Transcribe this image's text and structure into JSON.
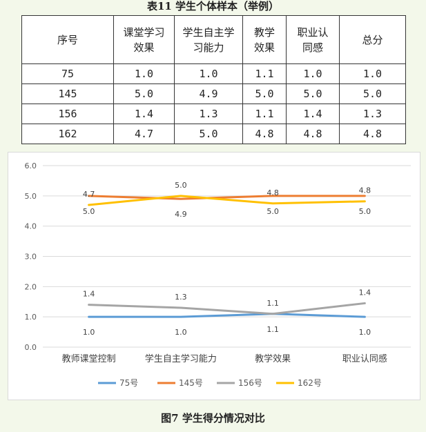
{
  "table": {
    "title": "表11  学生个体样本（举例）",
    "headers": [
      "序号",
      "课堂学习效果",
      "学生自主学习能力",
      "教学效果",
      "职业认同感",
      "总分"
    ],
    "header_lines": [
      [
        "序号"
      ],
      [
        "课堂学习",
        "效果"
      ],
      [
        "学生自主学",
        "习能力"
      ],
      [
        "教学",
        "效果"
      ],
      [
        "职业认",
        "同感"
      ],
      [
        "总分"
      ]
    ],
    "rows": [
      [
        "75",
        "1.0",
        "1.0",
        "1.1",
        "1.0",
        "1.0"
      ],
      [
        "145",
        "5.0",
        "4.9",
        "5.0",
        "5.0",
        "5.0"
      ],
      [
        "156",
        "1.4",
        "1.3",
        "1.1",
        "1.4",
        "1.3"
      ],
      [
        "162",
        "4.7",
        "5.0",
        "4.8",
        "4.8",
        "4.8"
      ]
    ]
  },
  "chart_data": {
    "type": "line",
    "title": "",
    "xlabel": "",
    "ylabel": "",
    "categories": [
      "教师课堂控制",
      "学生自主学习能力",
      "教学效果",
      "职业认同感"
    ],
    "ylim": [
      0,
      6
    ],
    "yticks": [
      "0.0",
      "1.0",
      "2.0",
      "3.0",
      "4.0",
      "5.0",
      "6.0"
    ],
    "grid": true,
    "legend_position": "bottom",
    "series": [
      {
        "name": "75号",
        "color": "#5b9bd5",
        "values": [
          1.0,
          1.0,
          1.1,
          1.0
        ],
        "labels": [
          "1.0",
          "1.0",
          "1.1",
          "1.0"
        ],
        "label_pos": [
          "below",
          "below",
          "below",
          "below"
        ]
      },
      {
        "name": "145号",
        "color": "#ed7d31",
        "values": [
          5.0,
          4.9,
          5.0,
          5.0
        ],
        "labels": [
          "5.0",
          "4.9",
          "5.0",
          "5.0"
        ],
        "label_pos": [
          "below",
          "below",
          "below",
          "below"
        ]
      },
      {
        "name": "156号",
        "color": "#a5a5a5",
        "values": [
          1.4,
          1.3,
          1.1,
          1.45
        ],
        "labels": [
          "1.4",
          "1.3",
          "1.1",
          "1.4"
        ],
        "label_pos": [
          "above",
          "above",
          "above",
          "above"
        ]
      },
      {
        "name": "162号",
        "color": "#ffc000",
        "values": [
          4.7,
          5.0,
          4.75,
          4.82
        ],
        "labels": [
          "4.7",
          "5.0",
          "4.8",
          "4.8"
        ],
        "label_pos": [
          "above",
          "above",
          "above",
          "above"
        ]
      }
    ]
  },
  "figure": {
    "caption": "图7    学生得分情况对比"
  }
}
